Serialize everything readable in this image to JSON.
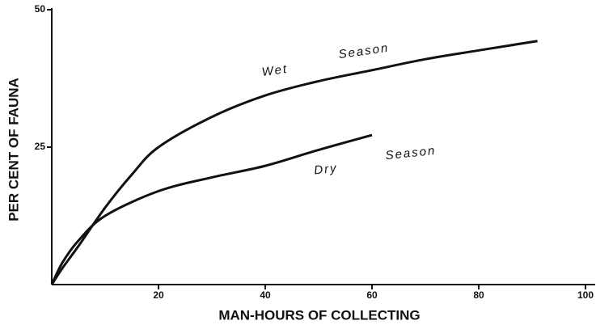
{
  "chart_data": {
    "type": "line",
    "x_label": "MAN-HOURS OF COLLECTING",
    "y_label": "PER CENT OF FAUNA",
    "xlim": [
      0,
      100
    ],
    "xticks": [
      20,
      40,
      60,
      80,
      100
    ],
    "ylim": [
      0,
      50
    ],
    "yticks": [
      25,
      50
    ],
    "series": [
      {
        "color": "#111111",
        "x": [
          0,
          2,
          5,
          10,
          15,
          20,
          30,
          40,
          50,
          60,
          70,
          80,
          91
        ],
        "values": [
          0,
          3,
          7,
          14,
          20,
          25,
          30.5,
          34.4,
          37,
          39,
          41,
          42.6,
          44.3
        ]
      },
      {
        "color": "#111111",
        "x": [
          0,
          2,
          5,
          10,
          20,
          30,
          40,
          50,
          60
        ],
        "values": [
          0,
          4,
          8,
          12.5,
          17,
          19.5,
          21.6,
          24.5,
          27.2
        ]
      }
    ],
    "annotations": [
      "Wet",
      "Season",
      "Dry",
      "Season"
    ]
  }
}
